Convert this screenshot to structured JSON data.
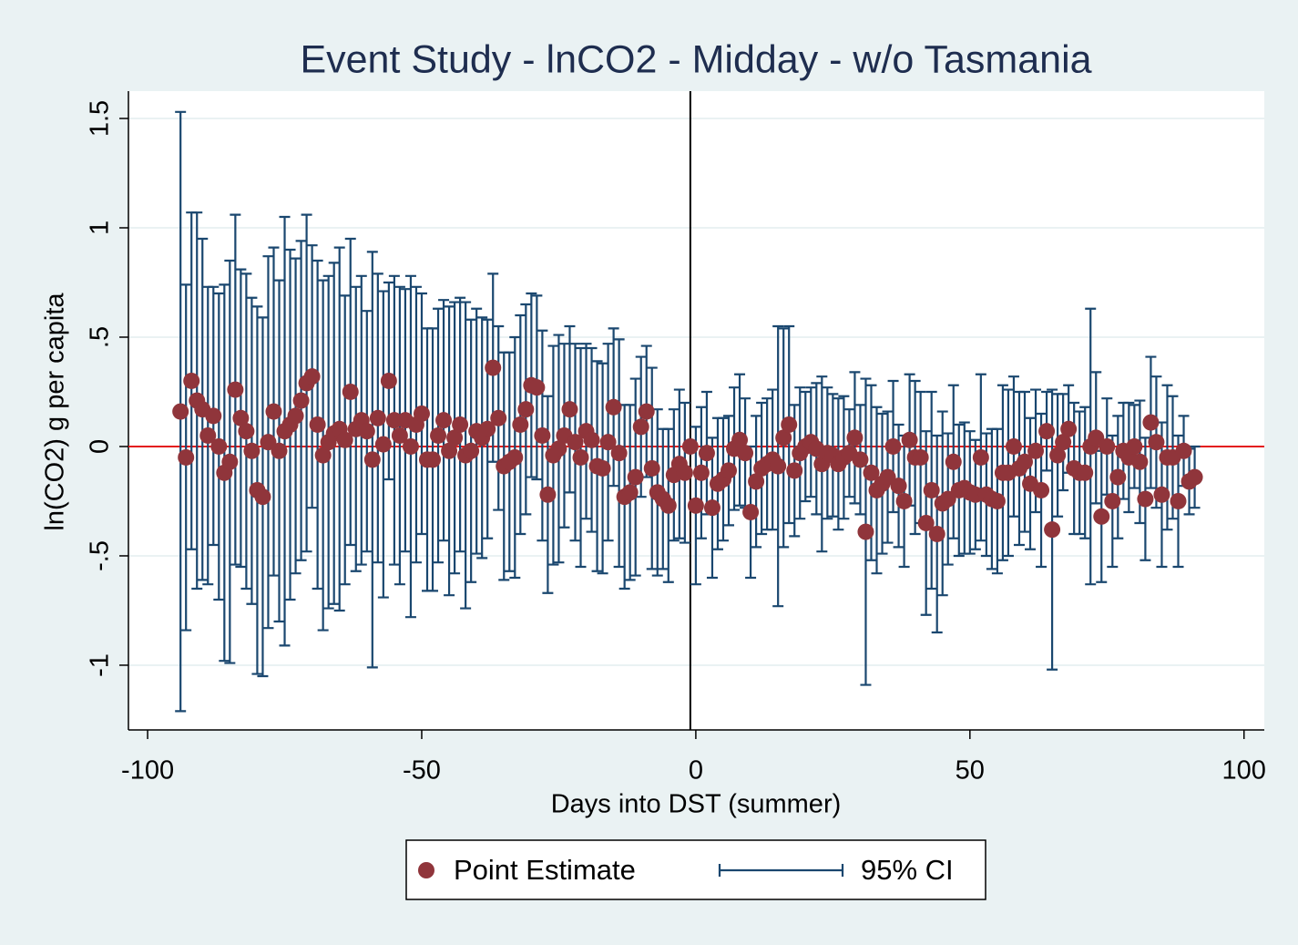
{
  "chart_data": {
    "type": "errorbar_scatter",
    "title": "Event Study - lnCO2 - Midday - w/o Tasmania",
    "x_label": "Days into DST (summer)",
    "y_label": "ln(CO2) g per capita",
    "xlim": [
      -103.5,
      103.7
    ],
    "ylim": [
      -1.296,
      1.625
    ],
    "xticks": [
      -100,
      -50,
      0,
      50,
      100
    ],
    "yticks": [
      {
        "value": -1,
        "label": "-1"
      },
      {
        "value": -0.5,
        "label": "-.5"
      },
      0,
      {
        "value": 0.5,
        "label": ".5"
      },
      1,
      1.5
    ],
    "grid": true,
    "hline": 0,
    "hline_color": "#e41a1c",
    "vline": -1,
    "vline_color": "#000000",
    "legend": "bottom",
    "x": [
      -94,
      -93,
      -92,
      -91,
      -90,
      -89,
      -88,
      -87,
      -86,
      -85,
      -84,
      -83,
      -82,
      -81,
      -80,
      -79,
      -78,
      -77,
      -76,
      -75,
      -74,
      -73,
      -72,
      -71,
      -70,
      -69,
      -68,
      -67,
      -66,
      -65,
      -64,
      -63,
      -62,
      -61,
      -60,
      -59,
      -58,
      -57,
      -56,
      -55,
      -54,
      -53,
      -52,
      -51,
      -50,
      -49,
      -48,
      -47,
      -46,
      -45,
      -44,
      -43,
      -42,
      -41,
      -40,
      -39,
      -38,
      -37,
      -36,
      -35,
      -34,
      -33,
      -32,
      -31,
      -30,
      -29,
      -28,
      -27,
      -26,
      -25,
      -24,
      -23,
      -22,
      -21,
      -20,
      -19,
      -18,
      -17,
      -16,
      -15,
      -14,
      -13,
      -12,
      -11,
      -10,
      -9,
      -8,
      -7,
      -6,
      -5,
      -4,
      -3,
      -2,
      -1,
      0,
      1,
      2,
      3,
      4,
      5,
      6,
      7,
      8,
      9,
      10,
      11,
      12,
      13,
      14,
      15,
      16,
      17,
      18,
      19,
      20,
      21,
      22,
      23,
      24,
      25,
      26,
      27,
      28,
      29,
      30,
      31,
      32,
      33,
      34,
      35,
      36,
      37,
      38,
      39,
      40,
      41,
      42,
      43,
      44,
      45,
      46,
      47,
      48,
      49,
      50,
      51,
      52,
      53,
      54,
      55,
      56,
      57,
      58,
      59,
      60,
      61,
      62,
      63,
      64,
      65,
      66,
      67,
      68,
      69,
      70,
      71,
      72,
      73,
      74,
      75,
      76,
      77,
      78,
      79,
      80,
      81,
      82,
      83,
      84,
      85,
      86,
      87,
      88,
      89,
      90,
      91
    ],
    "series": [
      {
        "name": "Point Estimate",
        "color": "#90353b",
        "values": [
          0.16,
          -0.05,
          0.3,
          0.21,
          0.17,
          0.05,
          0.14,
          0.0,
          -0.12,
          -0.07,
          0.26,
          0.13,
          0.07,
          -0.02,
          -0.2,
          -0.23,
          0.02,
          0.16,
          -0.02,
          0.07,
          0.1,
          0.14,
          0.21,
          0.29,
          0.32,
          0.1,
          -0.04,
          0.02,
          0.06,
          0.08,
          0.03,
          0.25,
          0.08,
          0.12,
          0.07,
          -0.06,
          0.13,
          0.01,
          0.3,
          0.12,
          0.05,
          0.12,
          0.0,
          0.1,
          0.15,
          -0.06,
          -0.06,
          0.05,
          0.12,
          -0.02,
          0.04,
          0.1,
          -0.04,
          -0.02,
          0.07,
          0.04,
          0.08,
          0.36,
          0.13,
          -0.09,
          -0.07,
          -0.05,
          0.1,
          0.17,
          0.28,
          0.27,
          0.05,
          -0.22,
          -0.04,
          -0.01,
          0.05,
          0.17,
          0.02,
          -0.05,
          0.07,
          0.03,
          -0.09,
          -0.1,
          0.02,
          0.18,
          -0.03,
          -0.23,
          -0.21,
          -0.14,
          0.09,
          0.16,
          -0.1,
          -0.21,
          -0.24,
          -0.27,
          -0.13,
          -0.08,
          -0.12,
          0,
          -0.27,
          -0.12,
          -0.03,
          -0.28,
          -0.17,
          -0.15,
          -0.11,
          -0.01,
          0.03,
          -0.03,
          -0.3,
          -0.16,
          -0.1,
          -0.08,
          -0.06,
          -0.09,
          0.04,
          0.1,
          -0.11,
          -0.03,
          0.0,
          0.02,
          -0.01,
          -0.08,
          -0.03,
          -0.04,
          -0.08,
          -0.05,
          -0.03,
          0.04,
          -0.06,
          -0.39,
          -0.12,
          -0.2,
          -0.17,
          -0.14,
          0.0,
          -0.18,
          -0.25,
          0.03,
          -0.05,
          -0.05,
          -0.35,
          -0.2,
          -0.4,
          -0.26,
          -0.24,
          -0.07,
          -0.2,
          -0.19,
          -0.21,
          -0.22,
          -0.05,
          -0.22,
          -0.24,
          -0.25,
          -0.12,
          -0.12,
          0.0,
          -0.1,
          -0.07,
          -0.17,
          -0.02,
          -0.2,
          0.07,
          -0.38,
          -0.04,
          0.02,
          0.08,
          -0.1,
          -0.12,
          -0.12,
          0.0,
          0.04,
          -0.32,
          0.0,
          -0.25,
          -0.14,
          -0.02,
          -0.05,
          0.0,
          -0.07,
          -0.24,
          0.11,
          0.02,
          -0.22,
          -0.05,
          -0.05,
          -0.25,
          -0.02,
          -0.16,
          -0.14
        ]
      },
      {
        "name": "95% CI",
        "color": "#1a476f",
        "errors": [
          1.37,
          0.79,
          0.77,
          0.86,
          0.78,
          0.68,
          0.59,
          0.7,
          0.86,
          0.92,
          0.8,
          0.68,
          0.72,
          0.7,
          0.84,
          0.82,
          0.85,
          0.75,
          0.78,
          0.98,
          0.8,
          0.72,
          0.73,
          0.77,
          0.6,
          0.75,
          0.8,
          0.76,
          0.78,
          0.83,
          0.66,
          0.7,
          0.65,
          0.66,
          0.55,
          0.95,
          0.66,
          0.7,
          0.45,
          0.66,
          0.68,
          0.6,
          0.78,
          0.63,
          0.55,
          0.6,
          0.6,
          0.58,
          0.55,
          0.66,
          0.62,
          0.58,
          0.7,
          0.6,
          0.56,
          0.55,
          0.5,
          0.43,
          0.42,
          0.52,
          0.5,
          0.55,
          0.5,
          0.48,
          0.42,
          0.42,
          0.48,
          0.45,
          0.5,
          0.52,
          0.42,
          0.38,
          0.45,
          0.5,
          0.4,
          0.42,
          0.48,
          0.48,
          0.45,
          0.36,
          0.52,
          0.42,
          0.4,
          0.45,
          0.32,
          0.3,
          0.46,
          0.38,
          0.32,
          0.35,
          0.3,
          0.34,
          0.32,
          0,
          0.36,
          0.3,
          0.28,
          0.32,
          0.3,
          0.28,
          0.25,
          0.28,
          0.3,
          0.25,
          0.3,
          0.3,
          0.3,
          0.3,
          0.32,
          0.64,
          0.5,
          0.45,
          0.3,
          0.3,
          0.25,
          0.25,
          0.3,
          0.4,
          0.3,
          0.28,
          0.3,
          0.28,
          0.2,
          0.3,
          0.25,
          0.7,
          0.4,
          0.38,
          0.32,
          0.3,
          0.3,
          0.28,
          0.3,
          0.3,
          0.35,
          0.3,
          0.42,
          0.45,
          0.45,
          0.42,
          0.3,
          0.35,
          0.3,
          0.3,
          0.28,
          0.25,
          0.38,
          0.28,
          0.32,
          0.33,
          0.4,
          0.38,
          0.32,
          0.35,
          0.32,
          0.3,
          0.28,
          0.35,
          0.18,
          0.64,
          0.28,
          0.22,
          0.2,
          0.3,
          0.28,
          0.3,
          0.63,
          0.3,
          0.3,
          0.22,
          0.3,
          0.28,
          0.22,
          0.25,
          0.19,
          0.28,
          0.28,
          0.3,
          0.3,
          0.33,
          0.33,
          0.28,
          0.3,
          0.16,
          0.15,
          0.14
        ]
      }
    ]
  }
}
